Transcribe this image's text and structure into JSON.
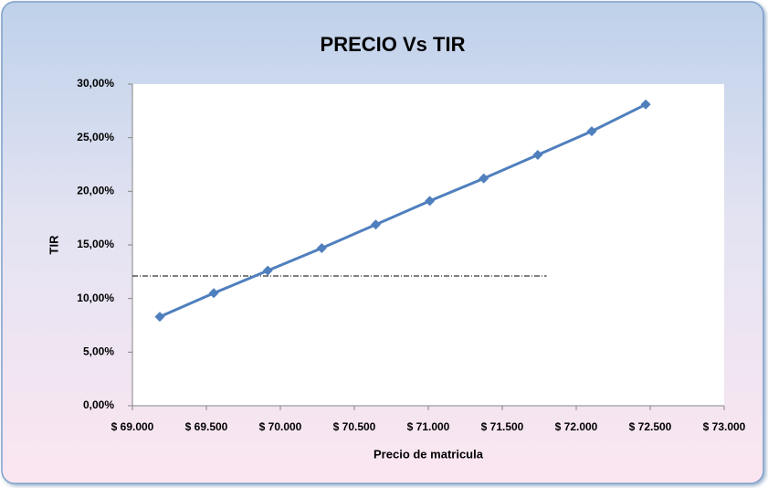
{
  "chart_data": {
    "type": "line",
    "title": "PRECIO Vs TIR",
    "x_label": "Precio de matricula",
    "y_label": "TIR",
    "x": [
      69185,
      69550,
      69915,
      70280,
      70645,
      71010,
      71375,
      71740,
      72105,
      72470
    ],
    "values": [
      8.3,
      10.5,
      12.6,
      14.7,
      16.9,
      19.1,
      21.2,
      23.4,
      25.6,
      28.1
    ],
    "color": "#4f7fbd",
    "xlim": [
      69000,
      73000
    ],
    "xticks": [
      {
        "value": 69000,
        "label": "$ 69.000"
      },
      {
        "value": 69500,
        "label": "$ 69.500"
      },
      {
        "value": 70000,
        "label": "$ 70.000"
      },
      {
        "value": 70500,
        "label": "$ 70.500"
      },
      {
        "value": 71000,
        "label": "$ 71.000"
      },
      {
        "value": 71500,
        "label": "$ 71.500"
      },
      {
        "value": 72000,
        "label": "$ 72.000"
      },
      {
        "value": 72500,
        "label": "$ 72.500"
      },
      {
        "value": 73000,
        "label": "$ 73.000"
      }
    ],
    "ylim": [
      0,
      30
    ],
    "yticks": [
      {
        "value": 0,
        "label": "0,00%"
      },
      {
        "value": 5,
        "label": "5,00%"
      },
      {
        "value": 10,
        "label": "10,00%"
      },
      {
        "value": 15,
        "label": "15,00%"
      },
      {
        "value": 20,
        "label": "20,00%"
      },
      {
        "value": 25,
        "label": "25,00%"
      },
      {
        "value": 30,
        "label": "30,00%"
      }
    ],
    "reference_line": {
      "y": 12.1,
      "x_end": 71800
    },
    "grid": false
  }
}
